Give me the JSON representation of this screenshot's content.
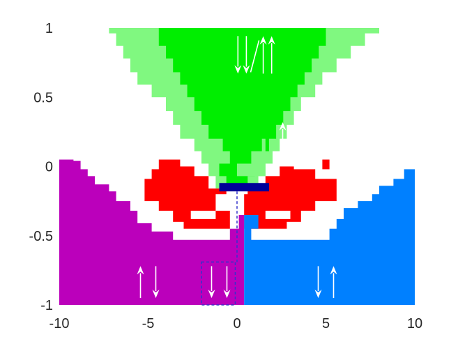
{
  "chart_data": {
    "type": "heatmap",
    "title": "",
    "xlabel": "",
    "ylabel": "",
    "xlim": [
      -10,
      10
    ],
    "ylim": [
      -1,
      1
    ],
    "grid": false,
    "xticks": [
      {
        "value": -10,
        "label": "-10"
      },
      {
        "value": -5,
        "label": "-5"
      },
      {
        "value": 0,
        "label": "0"
      },
      {
        "value": 5,
        "label": "5"
      },
      {
        "value": 10,
        "label": "10"
      }
    ],
    "yticks": [
      {
        "value": 1,
        "label": "1"
      },
      {
        "value": 0.5,
        "label": "0.5"
      },
      {
        "value": 0,
        "label": "0"
      },
      {
        "value": -0.5,
        "label": "-0.5"
      },
      {
        "value": -1,
        "label": "-1"
      }
    ],
    "colors": {
      "light_green": "#80f880",
      "green": "#00ee00",
      "red": "#ff0000",
      "purple": "#bb00bb",
      "blue": "#0080ff",
      "dark_blue": "#000099",
      "dashed_box": "#3333cc"
    },
    "regions": [
      {
        "name": "light-green-region",
        "color": "light_green",
        "polygon": [
          [
            -7.2,
            1
          ],
          [
            8,
            1
          ],
          [
            8,
            0.96
          ],
          [
            7.2,
            0.96
          ],
          [
            7.2,
            0.87
          ],
          [
            6.4,
            0.87
          ],
          [
            6.4,
            0.78
          ],
          [
            5.6,
            0.78
          ],
          [
            5.6,
            0.68
          ],
          [
            4.8,
            0.68
          ],
          [
            4.8,
            0.59
          ],
          [
            4.4,
            0.59
          ],
          [
            4.4,
            0.5
          ],
          [
            3.6,
            0.5
          ],
          [
            3.6,
            0.4
          ],
          [
            3.2,
            0.4
          ],
          [
            3.2,
            0.3
          ],
          [
            2.8,
            0.3
          ],
          [
            2.8,
            0.2
          ],
          [
            2.4,
            0.2
          ],
          [
            2.4,
            0.11
          ],
          [
            2,
            0.11
          ],
          [
            2,
            0.02
          ],
          [
            1.6,
            0.02
          ],
          [
            1.6,
            -0.07
          ],
          [
            1.2,
            -0.07
          ],
          [
            1.2,
            -0.16
          ],
          [
            -1.2,
            -0.16
          ],
          [
            -1.2,
            -0.07
          ],
          [
            -1.6,
            -0.07
          ],
          [
            -1.6,
            0.02
          ],
          [
            -2,
            0.02
          ],
          [
            -2,
            0.11
          ],
          [
            -2.4,
            0.11
          ],
          [
            -2.4,
            0.2
          ],
          [
            -3.2,
            0.2
          ],
          [
            -3.2,
            0.3
          ],
          [
            -3.6,
            0.3
          ],
          [
            -3.6,
            0.4
          ],
          [
            -4,
            0.4
          ],
          [
            -4,
            0.5
          ],
          [
            -4.8,
            0.5
          ],
          [
            -4.8,
            0.59
          ],
          [
            -5.6,
            0.59
          ],
          [
            -5.6,
            0.68
          ],
          [
            -6,
            0.68
          ],
          [
            -6,
            0.78
          ],
          [
            -6.4,
            0.78
          ],
          [
            -6.4,
            0.87
          ],
          [
            -6.8,
            0.87
          ],
          [
            -6.8,
            0.96
          ],
          [
            -7.2,
            0.96
          ]
        ]
      },
      {
        "name": "green-region",
        "color": "green",
        "polygon": [
          [
            -4.4,
            1
          ],
          [
            5,
            1
          ],
          [
            5,
            0.87
          ],
          [
            4.6,
            0.87
          ],
          [
            4.6,
            0.78
          ],
          [
            4.2,
            0.78
          ],
          [
            4.2,
            0.68
          ],
          [
            3.8,
            0.68
          ],
          [
            3.8,
            0.59
          ],
          [
            3.4,
            0.59
          ],
          [
            3.4,
            0.5
          ],
          [
            3,
            0.5
          ],
          [
            3,
            0.4
          ],
          [
            2.6,
            0.4
          ],
          [
            2.6,
            0.3
          ],
          [
            2.2,
            0.3
          ],
          [
            2.2,
            0.2
          ],
          [
            1.8,
            0.2
          ],
          [
            1.8,
            0.11
          ],
          [
            1.4,
            0.11
          ],
          [
            1.4,
            0.02
          ],
          [
            1,
            0.02
          ],
          [
            1,
            -0.07
          ],
          [
            0.6,
            -0.07
          ],
          [
            0.6,
            -0.16
          ],
          [
            -0.6,
            -0.16
          ],
          [
            -0.6,
            -0.07
          ],
          [
            -1,
            -0.07
          ],
          [
            -1,
            0.02
          ],
          [
            -0.4,
            0.02
          ],
          [
            -0.4,
            0.11
          ],
          [
            -0.8,
            0.11
          ],
          [
            -0.8,
            0.2
          ],
          [
            -1.6,
            0.2
          ],
          [
            -1.6,
            0.3
          ],
          [
            -2,
            0.3
          ],
          [
            -2,
            0.4
          ],
          [
            -2.4,
            0.4
          ],
          [
            -2.4,
            0.5
          ],
          [
            -2.8,
            0.5
          ],
          [
            -2.8,
            0.59
          ],
          [
            -3.2,
            0.59
          ],
          [
            -3.2,
            0.68
          ],
          [
            -3.6,
            0.68
          ],
          [
            -3.6,
            0.78
          ],
          [
            -4,
            0.78
          ],
          [
            -4,
            0.87
          ],
          [
            -4.4,
            0.87
          ]
        ]
      },
      {
        "name": "light-green-notch",
        "color": "light_green",
        "polygon": [
          [
            0,
            0.02
          ],
          [
            0.8,
            0.02
          ],
          [
            0.8,
            0.11
          ],
          [
            1.4,
            0.11
          ],
          [
            1.4,
            0.2
          ],
          [
            1.6,
            0.2
          ],
          [
            1.6,
            -0.07
          ],
          [
            0,
            -0.07
          ]
        ]
      },
      {
        "name": "red-region-left",
        "color": "red",
        "polygon": [
          [
            -4.4,
            0.05
          ],
          [
            -3.2,
            0.05
          ],
          [
            -3.2,
            0
          ],
          [
            -2.4,
            0
          ],
          [
            -2.4,
            -0.07
          ],
          [
            -1.6,
            -0.07
          ],
          [
            -1.6,
            -0.16
          ],
          [
            -0.6,
            -0.16
          ],
          [
            -0.6,
            -0.2
          ],
          [
            -1.2,
            -0.2
          ],
          [
            -1.2,
            -0.32
          ],
          [
            -0.4,
            -0.32
          ],
          [
            -0.4,
            -0.45
          ],
          [
            -3,
            -0.45
          ],
          [
            -3,
            -0.4
          ],
          [
            -3.6,
            -0.4
          ],
          [
            -3.6,
            -0.32
          ],
          [
            -4.4,
            -0.32
          ],
          [
            -4.4,
            -0.25
          ],
          [
            -5.2,
            -0.25
          ],
          [
            -5.2,
            -0.09
          ],
          [
            -4.8,
            -0.09
          ],
          [
            -4.8,
            -0.02
          ],
          [
            -4.4,
            -0.02
          ]
        ]
      },
      {
        "name": "red-region-right",
        "color": "red",
        "polygon": [
          [
            0.6,
            -0.16
          ],
          [
            1.6,
            -0.16
          ],
          [
            1.6,
            -0.07
          ],
          [
            2.4,
            -0.07
          ],
          [
            2.4,
            0
          ],
          [
            3.2,
            0
          ],
          [
            3.2,
            -0.02
          ],
          [
            4.4,
            -0.02
          ],
          [
            4.4,
            -0.09
          ],
          [
            5.6,
            -0.09
          ],
          [
            5.6,
            -0.25
          ],
          [
            4.4,
            -0.25
          ],
          [
            4.4,
            -0.32
          ],
          [
            3.6,
            -0.32
          ],
          [
            3.6,
            -0.4
          ],
          [
            2.8,
            -0.4
          ],
          [
            2.8,
            -0.45
          ],
          [
            0.4,
            -0.45
          ],
          [
            0.4,
            -0.2
          ],
          [
            0.6,
            -0.2
          ]
        ]
      },
      {
        "name": "red-region-right-dot",
        "color": "red",
        "polygon": [
          [
            4.8,
            0.05
          ],
          [
            5.2,
            0.05
          ],
          [
            5.2,
            -0.02
          ],
          [
            4.8,
            -0.02
          ]
        ]
      },
      {
        "name": "white-hole-left",
        "color": "white",
        "polygon": [
          [
            -2.6,
            -0.32
          ],
          [
            -1.2,
            -0.32
          ],
          [
            -1.2,
            -0.38
          ],
          [
            -2.6,
            -0.38
          ]
        ]
      },
      {
        "name": "white-hole-right",
        "color": "white",
        "polygon": [
          [
            1.6,
            -0.32
          ],
          [
            3,
            -0.32
          ],
          [
            3,
            -0.38
          ],
          [
            1.6,
            -0.38
          ]
        ]
      },
      {
        "name": "purple-region",
        "color": "purple",
        "polygon": [
          [
            -10,
            -1
          ],
          [
            0.4,
            -1
          ],
          [
            0.4,
            -0.35
          ],
          [
            0.1,
            -0.35
          ],
          [
            0.1,
            -0.45
          ],
          [
            -0.4,
            -0.45
          ],
          [
            -0.4,
            -0.53
          ],
          [
            -3.6,
            -0.53
          ],
          [
            -3.6,
            -0.47
          ],
          [
            -4.8,
            -0.47
          ],
          [
            -4.8,
            -0.41
          ],
          [
            -5.6,
            -0.41
          ],
          [
            -5.6,
            -0.32
          ],
          [
            -6,
            -0.32
          ],
          [
            -6,
            -0.25
          ],
          [
            -6.8,
            -0.25
          ],
          [
            -6.8,
            -0.18
          ],
          [
            -7.2,
            -0.18
          ],
          [
            -7.2,
            -0.13
          ],
          [
            -8,
            -0.13
          ],
          [
            -8,
            -0.07
          ],
          [
            -8.4,
            -0.07
          ],
          [
            -8.4,
            -0.02
          ],
          [
            -8.8,
            -0.02
          ],
          [
            -8.8,
            0.04
          ],
          [
            -9.2,
            0.04
          ],
          [
            -9.2,
            0.05
          ],
          [
            -10,
            0.05
          ]
        ]
      },
      {
        "name": "blue-region",
        "color": "blue",
        "polygon": [
          [
            0.4,
            -1
          ],
          [
            10,
            -1
          ],
          [
            10,
            -0.02
          ],
          [
            9.4,
            -0.02
          ],
          [
            9.4,
            -0.09
          ],
          [
            8.8,
            -0.09
          ],
          [
            8.8,
            -0.14
          ],
          [
            8,
            -0.14
          ],
          [
            8,
            -0.2
          ],
          [
            7.6,
            -0.2
          ],
          [
            7.6,
            -0.25
          ],
          [
            6.8,
            -0.25
          ],
          [
            6.8,
            -0.3
          ],
          [
            6,
            -0.3
          ],
          [
            6,
            -0.38
          ],
          [
            5.6,
            -0.38
          ],
          [
            5.6,
            -0.45
          ],
          [
            5.2,
            -0.45
          ],
          [
            5.2,
            -0.53
          ],
          [
            0.8,
            -0.53
          ],
          [
            0.8,
            -0.45
          ],
          [
            1.2,
            -0.45
          ],
          [
            1.2,
            -0.35
          ],
          [
            0.4,
            -0.35
          ]
        ]
      },
      {
        "name": "dark-blue-bar",
        "color": "dark_blue",
        "polygon": [
          [
            -1,
            -0.12
          ],
          [
            1.8,
            -0.12
          ],
          [
            1.8,
            -0.18
          ],
          [
            -1,
            -0.18
          ]
        ]
      }
    ],
    "dashed_box": {
      "x": [
        -2,
        -0.1
      ],
      "y": [
        -1,
        -0.69
      ]
    },
    "dashed_line": [
      [
        0,
        -0.18
      ],
      [
        0,
        -0.69
      ]
    ],
    "arrow_groups": [
      {
        "name": "arrows-green-top",
        "x": 1,
        "y": [
          0.67,
          0.94
        ],
        "directions": [
          "down",
          "down",
          "slash",
          "up",
          "up"
        ]
      },
      {
        "name": "arrows-light-green",
        "x": 3,
        "y": [
          0.07,
          0.32
        ],
        "directions": [
          "up",
          "up"
        ]
      },
      {
        "name": "arrows-purple",
        "x": -5,
        "y": [
          -0.72,
          -0.95
        ],
        "directions": [
          "up",
          "down"
        ]
      },
      {
        "name": "arrows-dashed-box",
        "x": -1,
        "y": [
          -0.72,
          -0.95
        ],
        "directions": [
          "down",
          "down"
        ]
      },
      {
        "name": "arrows-blue",
        "x": 5,
        "y": [
          -0.72,
          -0.95
        ],
        "directions": [
          "down",
          "up"
        ]
      }
    ]
  }
}
